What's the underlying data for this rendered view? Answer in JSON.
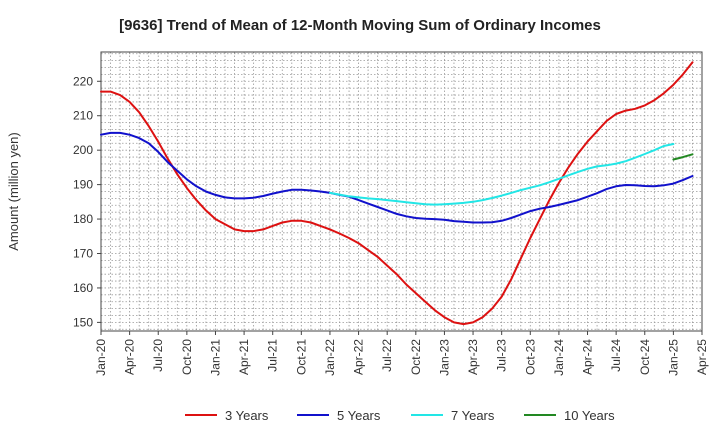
{
  "chart_data": {
    "type": "line",
    "title": "[9636]  Trend of Mean of 12-Month Moving Sum of Ordinary Incomes",
    "xlabel": "",
    "ylabel": "Amount (million yen)",
    "ylim": [
      147.5,
      228.5
    ],
    "yticks": [
      150,
      160,
      170,
      180,
      190,
      200,
      210,
      220
    ],
    "xticks": [
      "Jan-20",
      "Apr-20",
      "Jul-20",
      "Oct-20",
      "Jan-21",
      "Apr-21",
      "Jul-21",
      "Oct-21",
      "Jan-22",
      "Apr-22",
      "Jul-22",
      "Oct-22",
      "Jan-23",
      "Apr-23",
      "Jul-23",
      "Oct-23",
      "Jan-24",
      "Apr-24",
      "Jul-24",
      "Oct-24",
      "Jan-25",
      "Apr-25"
    ],
    "grid": true,
    "legend_position": "bottom",
    "series": [
      {
        "name": "3 Years",
        "color": "#dd1111",
        "start_month": 0,
        "values": [
          217.0,
          217.0,
          216.0,
          214.0,
          211.0,
          207.0,
          202.5,
          197.5,
          193.0,
          189.0,
          185.5,
          182.5,
          180.0,
          178.5,
          177.0,
          176.5,
          176.5,
          177.0,
          178.0,
          179.0,
          179.5,
          179.5,
          179.0,
          178.0,
          177.0,
          175.8,
          174.5,
          173.0,
          171.0,
          169.0,
          166.5,
          164.0,
          161.0,
          158.5,
          156.0,
          153.5,
          151.5,
          150.0,
          149.5,
          150.0,
          151.5,
          154.0,
          157.5,
          162.5,
          168.5,
          174.5,
          180.0,
          185.5,
          190.5,
          195.0,
          199.0,
          202.5,
          205.5,
          208.5,
          210.5,
          211.5,
          212.0,
          213.0,
          214.5,
          216.5,
          219.0,
          222.0,
          225.5
        ]
      },
      {
        "name": "5 Years",
        "color": "#1111cc",
        "start_month": 0,
        "values": [
          204.5,
          205.0,
          205.0,
          204.5,
          203.5,
          202.0,
          199.5,
          196.5,
          194.0,
          191.5,
          189.5,
          188.0,
          187.0,
          186.3,
          186.0,
          186.0,
          186.2,
          186.7,
          187.4,
          188.0,
          188.5,
          188.5,
          188.3,
          188.0,
          187.6,
          187.0,
          186.5,
          185.5,
          184.5,
          183.5,
          182.5,
          181.5,
          180.8,
          180.3,
          180.1,
          180.0,
          179.8,
          179.4,
          179.2,
          179.0,
          179.0,
          179.1,
          179.5,
          180.3,
          181.3,
          182.3,
          183.0,
          183.5,
          184.1,
          184.8,
          185.5,
          186.5,
          187.5,
          188.7,
          189.5,
          189.9,
          189.8,
          189.6,
          189.5,
          189.8,
          190.3,
          191.3,
          192.5
        ]
      },
      {
        "name": "7 Years",
        "color": "#22e6e6",
        "start_month": 24,
        "values": [
          187.6,
          187.1,
          186.6,
          186.3,
          186.0,
          185.8,
          185.5,
          185.2,
          184.9,
          184.6,
          184.3,
          184.2,
          184.3,
          184.5,
          184.7,
          185.0,
          185.5,
          186.1,
          186.8,
          187.6,
          188.4,
          189.1,
          189.8,
          190.7,
          191.7,
          192.7,
          193.7,
          194.6,
          195.3,
          195.6,
          196.1,
          196.8,
          197.8,
          198.9,
          200.0,
          201.2,
          201.8
        ]
      },
      {
        "name": "10 Years",
        "color": "#228822",
        "start_month": 60,
        "values": [
          197.3,
          198.0,
          198.8
        ]
      }
    ]
  }
}
